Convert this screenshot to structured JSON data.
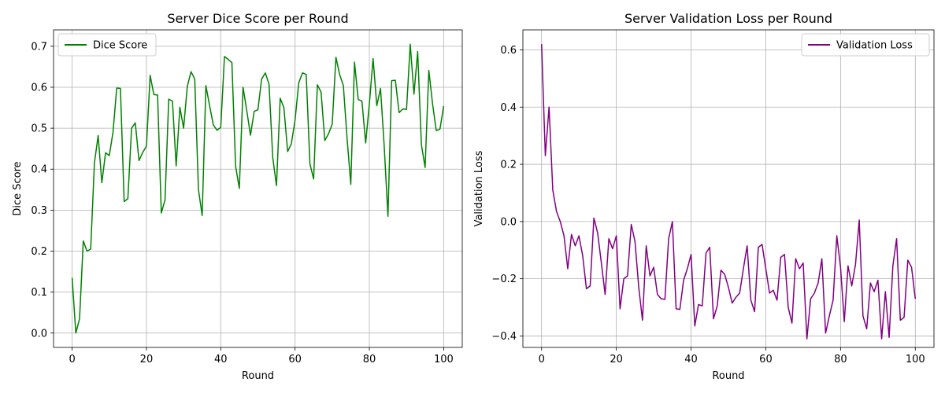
{
  "chart_data": [
    {
      "type": "line",
      "title": "Server Dice Score per Round",
      "xlabel": "Round",
      "ylabel": "Dice Score",
      "xlim": [
        -5,
        105
      ],
      "ylim": [
        -0.035,
        0.74
      ],
      "xticks": [
        0,
        20,
        40,
        60,
        80,
        100
      ],
      "xtick_labels": [
        "0",
        "20",
        "40",
        "60",
        "80",
        "100"
      ],
      "yticks": [
        0.0,
        0.1,
        0.2,
        0.3,
        0.4,
        0.5,
        0.6,
        0.7
      ],
      "ytick_labels": [
        "0.0",
        "0.1",
        "0.2",
        "0.3",
        "0.4",
        "0.5",
        "0.6",
        "0.7"
      ],
      "grid": true,
      "legend_position": "upper-left",
      "series": [
        {
          "name": "Dice Score",
          "color": "#008000",
          "x": [
            0,
            1,
            2,
            3,
            4,
            5,
            6,
            7,
            8,
            9,
            10,
            11,
            12,
            13,
            14,
            15,
            16,
            17,
            18,
            19,
            20,
            21,
            22,
            23,
            24,
            25,
            26,
            27,
            28,
            29,
            30,
            31,
            32,
            33,
            34,
            35,
            36,
            37,
            38,
            39,
            40,
            41,
            42,
            43,
            44,
            45,
            46,
            47,
            48,
            49,
            50,
            51,
            52,
            53,
            54,
            55,
            56,
            57,
            58,
            59,
            60,
            61,
            62,
            63,
            64,
            65,
            66,
            67,
            68,
            69,
            70,
            71,
            72,
            73,
            74,
            75,
            76,
            77,
            78,
            79,
            80,
            81,
            82,
            83,
            84,
            85,
            86,
            87,
            88,
            89,
            90,
            91,
            92,
            93,
            94,
            95,
            96,
            97,
            98,
            99,
            100
          ],
          "values": [
            0.135,
            0.0,
            0.035,
            0.225,
            0.2,
            0.205,
            0.415,
            0.482,
            0.367,
            0.44,
            0.433,
            0.49,
            0.598,
            0.597,
            0.321,
            0.328,
            0.5,
            0.513,
            0.421,
            0.441,
            0.456,
            0.629,
            0.582,
            0.581,
            0.293,
            0.325,
            0.571,
            0.566,
            0.408,
            0.551,
            0.5,
            0.602,
            0.638,
            0.62,
            0.35,
            0.287,
            0.604,
            0.555,
            0.508,
            0.495,
            0.502,
            0.675,
            0.668,
            0.66,
            0.407,
            0.353,
            0.6,
            0.543,
            0.483,
            0.541,
            0.545,
            0.62,
            0.635,
            0.607,
            0.428,
            0.36,
            0.573,
            0.55,
            0.443,
            0.462,
            0.52,
            0.611,
            0.635,
            0.631,
            0.413,
            0.376,
            0.606,
            0.588,
            0.47,
            0.486,
            0.51,
            0.673,
            0.631,
            0.604,
            0.475,
            0.363,
            0.661,
            0.57,
            0.566,
            0.464,
            0.56,
            0.67,
            0.555,
            0.597,
            0.455,
            0.285,
            0.616,
            0.617,
            0.538,
            0.547,
            0.546,
            0.705,
            0.583,
            0.687,
            0.46,
            0.404,
            0.641,
            0.56,
            0.494,
            0.498,
            0.554
          ]
        }
      ]
    },
    {
      "type": "line",
      "title": "Server Validation Loss per Round",
      "xlabel": "Round",
      "ylabel": "Validation Loss",
      "xlim": [
        -5,
        105
      ],
      "ylim": [
        -0.44,
        0.67
      ],
      "xticks": [
        0,
        20,
        40,
        60,
        80,
        100
      ],
      "xtick_labels": [
        "0",
        "20",
        "40",
        "60",
        "80",
        "100"
      ],
      "yticks": [
        -0.4,
        -0.2,
        0.0,
        0.2,
        0.4,
        0.6
      ],
      "ytick_labels": [
        "−0.4",
        "−0.2",
        "0.0",
        "0.2",
        "0.4",
        "0.6"
      ],
      "grid": true,
      "legend_position": "upper-right",
      "series": [
        {
          "name": "Validation Loss",
          "color": "#800080",
          "x": [
            0,
            1,
            2,
            3,
            4,
            5,
            6,
            7,
            8,
            9,
            10,
            11,
            12,
            13,
            14,
            15,
            16,
            17,
            18,
            19,
            20,
            21,
            22,
            23,
            24,
            25,
            26,
            27,
            28,
            29,
            30,
            31,
            32,
            33,
            34,
            35,
            36,
            37,
            38,
            39,
            40,
            41,
            42,
            43,
            44,
            45,
            46,
            47,
            48,
            49,
            50,
            51,
            52,
            53,
            54,
            55,
            56,
            57,
            58,
            59,
            60,
            61,
            62,
            63,
            64,
            65,
            66,
            67,
            68,
            69,
            70,
            71,
            72,
            73,
            74,
            75,
            76,
            77,
            78,
            79,
            80,
            81,
            82,
            83,
            84,
            85,
            86,
            87,
            88,
            89,
            90,
            91,
            92,
            93,
            94,
            95,
            96,
            97,
            98,
            99,
            100
          ],
          "values": [
            0.62,
            0.23,
            0.4,
            0.11,
            0.035,
            0.0,
            -0.05,
            -0.165,
            -0.045,
            -0.085,
            -0.05,
            -0.12,
            -0.235,
            -0.225,
            0.012,
            -0.04,
            -0.145,
            -0.255,
            -0.06,
            -0.095,
            -0.05,
            -0.305,
            -0.2,
            -0.19,
            -0.01,
            -0.07,
            -0.23,
            -0.345,
            -0.085,
            -0.19,
            -0.16,
            -0.255,
            -0.27,
            -0.272,
            -0.06,
            0.0,
            -0.305,
            -0.307,
            -0.205,
            -0.165,
            -0.115,
            -0.365,
            -0.29,
            -0.295,
            -0.11,
            -0.09,
            -0.34,
            -0.295,
            -0.17,
            -0.185,
            -0.23,
            -0.285,
            -0.265,
            -0.25,
            -0.165,
            -0.085,
            -0.275,
            -0.315,
            -0.09,
            -0.08,
            -0.165,
            -0.25,
            -0.24,
            -0.275,
            -0.125,
            -0.115,
            -0.3,
            -0.355,
            -0.13,
            -0.165,
            -0.145,
            -0.41,
            -0.27,
            -0.25,
            -0.215,
            -0.13,
            -0.39,
            -0.33,
            -0.275,
            -0.05,
            -0.16,
            -0.35,
            -0.155,
            -0.225,
            -0.15,
            0.005,
            -0.33,
            -0.375,
            -0.215,
            -0.245,
            -0.205,
            -0.41,
            -0.245,
            -0.405,
            -0.155,
            -0.06,
            -0.345,
            -0.335,
            -0.135,
            -0.16,
            -0.27
          ]
        }
      ]
    }
  ]
}
